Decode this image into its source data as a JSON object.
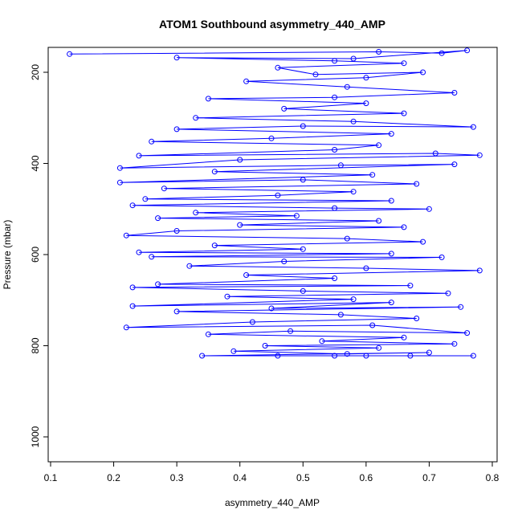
{
  "chart_data": {
    "type": "scatter",
    "title": "ATOM1 Southbound asymmetry_440_AMP",
    "xlabel": "asymmetry_440_AMP",
    "ylabel": "Pressure (mbar)",
    "xlim": [
      0.1,
      0.8
    ],
    "ylim": [
      1050,
      150
    ],
    "y_axis_reversed": true,
    "x_ticks": [
      0.1,
      0.2,
      0.3,
      0.4,
      0.5,
      0.6,
      0.7,
      0.8
    ],
    "y_ticks": [
      200,
      400,
      600,
      800,
      1000
    ],
    "x_tick_labels": [
      "0.1",
      "0.2",
      "0.3",
      "0.4",
      "0.5",
      "0.6",
      "0.7",
      "0.8"
    ],
    "y_tick_labels": [
      "200",
      "400",
      "600",
      "800",
      "1000"
    ],
    "marker": "open-circle",
    "connected_by_lines": true,
    "series_color": "#0000ff",
    "series": [
      {
        "points": [
          [
            0.13,
            160
          ],
          [
            0.62,
            155
          ],
          [
            0.72,
            158
          ],
          [
            0.76,
            152
          ],
          [
            0.58,
            170
          ],
          [
            0.3,
            168
          ],
          [
            0.55,
            175
          ],
          [
            0.66,
            180
          ],
          [
            0.46,
            190
          ],
          [
            0.52,
            205
          ],
          [
            0.69,
            200
          ],
          [
            0.6,
            212
          ],
          [
            0.41,
            220
          ],
          [
            0.57,
            232
          ],
          [
            0.74,
            245
          ],
          [
            0.55,
            255
          ],
          [
            0.35,
            258
          ],
          [
            0.6,
            268
          ],
          [
            0.47,
            280
          ],
          [
            0.66,
            290
          ],
          [
            0.33,
            300
          ],
          [
            0.58,
            308
          ],
          [
            0.77,
            320
          ],
          [
            0.5,
            318
          ],
          [
            0.3,
            325
          ],
          [
            0.64,
            335
          ],
          [
            0.45,
            345
          ],
          [
            0.26,
            352
          ],
          [
            0.62,
            360
          ],
          [
            0.55,
            370
          ],
          [
            0.24,
            383
          ],
          [
            0.71,
            378
          ],
          [
            0.78,
            382
          ],
          [
            0.4,
            392
          ],
          [
            0.21,
            410
          ],
          [
            0.56,
            404
          ],
          [
            0.74,
            402
          ],
          [
            0.36,
            418
          ],
          [
            0.61,
            425
          ],
          [
            0.21,
            442
          ],
          [
            0.5,
            436
          ],
          [
            0.68,
            445
          ],
          [
            0.28,
            455
          ],
          [
            0.58,
            462
          ],
          [
            0.46,
            470
          ],
          [
            0.25,
            478
          ],
          [
            0.64,
            482
          ],
          [
            0.23,
            492
          ],
          [
            0.55,
            498
          ],
          [
            0.7,
            500
          ],
          [
            0.33,
            508
          ],
          [
            0.49,
            515
          ],
          [
            0.27,
            520
          ],
          [
            0.62,
            526
          ],
          [
            0.4,
            535
          ],
          [
            0.66,
            540
          ],
          [
            0.3,
            548
          ],
          [
            0.22,
            558
          ],
          [
            0.57,
            565
          ],
          [
            0.69,
            572
          ],
          [
            0.36,
            580
          ],
          [
            0.5,
            588
          ],
          [
            0.24,
            595
          ],
          [
            0.64,
            598
          ],
          [
            0.26,
            605
          ],
          [
            0.72,
            606
          ],
          [
            0.47,
            615
          ],
          [
            0.32,
            625
          ],
          [
            0.6,
            630
          ],
          [
            0.78,
            635
          ],
          [
            0.41,
            645
          ],
          [
            0.55,
            652
          ],
          [
            0.27,
            665
          ],
          [
            0.67,
            668
          ],
          [
            0.23,
            672
          ],
          [
            0.5,
            680
          ],
          [
            0.73,
            685
          ],
          [
            0.38,
            692
          ],
          [
            0.58,
            698
          ],
          [
            0.23,
            713
          ],
          [
            0.64,
            705
          ],
          [
            0.45,
            718
          ],
          [
            0.75,
            715
          ],
          [
            0.3,
            725
          ],
          [
            0.56,
            732
          ],
          [
            0.68,
            740
          ],
          [
            0.42,
            748
          ],
          [
            0.22,
            760
          ],
          [
            0.61,
            755
          ],
          [
            0.76,
            772
          ],
          [
            0.48,
            768
          ],
          [
            0.35,
            775
          ],
          [
            0.66,
            782
          ],
          [
            0.53,
            790
          ],
          [
            0.74,
            796
          ],
          [
            0.44,
            800
          ],
          [
            0.62,
            805
          ],
          [
            0.39,
            812
          ],
          [
            0.57,
            818
          ],
          [
            0.7,
            815
          ],
          [
            0.34,
            822
          ],
          [
            0.46,
            822
          ],
          [
            0.55,
            822
          ],
          [
            0.6,
            822
          ],
          [
            0.67,
            822
          ],
          [
            0.77,
            822
          ]
        ]
      }
    ]
  }
}
